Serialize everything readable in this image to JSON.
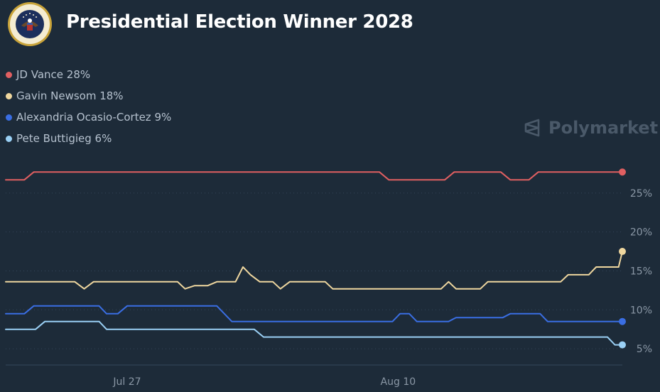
{
  "header": {
    "title": "Presidential Election Winner 2028",
    "seal_icon": "presidential-seal-icon"
  },
  "watermark": {
    "label": "Polymarket",
    "icon": "polymarket-logo-icon"
  },
  "chart_data": {
    "type": "line",
    "title": "Presidential Election Winner 2028",
    "xlabel": "",
    "ylabel": "",
    "x_tick_labels": [
      "Jul 27",
      "Aug 10"
    ],
    "y_ticks": [
      {
        "value": 25,
        "label": "25%"
      },
      {
        "value": 20,
        "label": "20%"
      },
      {
        "value": 15,
        "label": "15%"
      },
      {
        "value": 10,
        "label": "10%"
      },
      {
        "value": 5,
        "label": "5%"
      }
    ],
    "ylim": [
      3,
      29
    ],
    "x_domain_days": [
      0,
      33
    ],
    "x_tick_days": [
      6.5,
      21
    ],
    "grid": true,
    "grid_style": "dashed horizontal",
    "legend_placement": "top-left",
    "series": [
      {
        "name": "JD Vance",
        "label": "JD Vance 28%",
        "color": "#e05f61",
        "current": 28,
        "points": [
          [
            0,
            26.7
          ],
          [
            1,
            26.7
          ],
          [
            1.5,
            27.7
          ],
          [
            20,
            27.7
          ],
          [
            20.5,
            26.7
          ],
          [
            23.5,
            26.7
          ],
          [
            24,
            27.7
          ],
          [
            26.5,
            27.7
          ],
          [
            27,
            26.7
          ],
          [
            28,
            26.7
          ],
          [
            28.5,
            27.7
          ],
          [
            33,
            27.7
          ]
        ]
      },
      {
        "name": "Gavin Newsom",
        "label": "Gavin Newsom 18%",
        "color": "#efd79f",
        "current": 18,
        "points": [
          [
            0,
            13.6
          ],
          [
            3.7,
            13.6
          ],
          [
            4.2,
            12.7
          ],
          [
            4.7,
            13.6
          ],
          [
            9.2,
            13.6
          ],
          [
            9.6,
            12.7
          ],
          [
            10.1,
            13.1
          ],
          [
            10.8,
            13.1
          ],
          [
            11.3,
            13.6
          ],
          [
            12.3,
            13.6
          ],
          [
            12.7,
            15.5
          ],
          [
            13.1,
            14.5
          ],
          [
            13.6,
            13.6
          ],
          [
            14.3,
            13.6
          ],
          [
            14.7,
            12.7
          ],
          [
            15.2,
            13.6
          ],
          [
            17.1,
            13.6
          ],
          [
            17.5,
            12.7
          ],
          [
            23.3,
            12.7
          ],
          [
            23.7,
            13.6
          ],
          [
            24.1,
            12.7
          ],
          [
            25.4,
            12.7
          ],
          [
            25.8,
            13.6
          ],
          [
            29.7,
            13.6
          ],
          [
            30.1,
            14.5
          ],
          [
            31.2,
            14.5
          ],
          [
            31.6,
            15.5
          ],
          [
            32.8,
            15.5
          ],
          [
            33,
            17.5
          ]
        ]
      },
      {
        "name": "Alexandria Ocasio-Cortez",
        "label": "Alexandria Ocasio-Cortez 9%",
        "color": "#3a6ee3",
        "current": 9,
        "points": [
          [
            0,
            9.5
          ],
          [
            1,
            9.5
          ],
          [
            1.5,
            10.5
          ],
          [
            5,
            10.5
          ],
          [
            5.4,
            9.5
          ],
          [
            6,
            9.5
          ],
          [
            6.5,
            10.5
          ],
          [
            11.3,
            10.5
          ],
          [
            12.1,
            8.5
          ],
          [
            20.7,
            8.5
          ],
          [
            21.1,
            9.5
          ],
          [
            21.6,
            9.5
          ],
          [
            22,
            8.5
          ],
          [
            23.7,
            8.5
          ],
          [
            24.1,
            9
          ],
          [
            26.6,
            9
          ],
          [
            27,
            9.5
          ],
          [
            28.6,
            9.5
          ],
          [
            29,
            8.5
          ],
          [
            33,
            8.5
          ]
        ]
      },
      {
        "name": "Pete Buttigieg",
        "label": "Pete Buttigieg 6%",
        "color": "#9ad0f5",
        "current": 6,
        "points": [
          [
            0,
            7.5
          ],
          [
            1.6,
            7.5
          ],
          [
            2.1,
            8.5
          ],
          [
            5,
            8.5
          ],
          [
            5.4,
            7.5
          ],
          [
            13.3,
            7.5
          ],
          [
            13.8,
            6.5
          ],
          [
            32.2,
            6.5
          ],
          [
            32.6,
            5.5
          ],
          [
            33,
            5.5
          ]
        ]
      }
    ]
  }
}
